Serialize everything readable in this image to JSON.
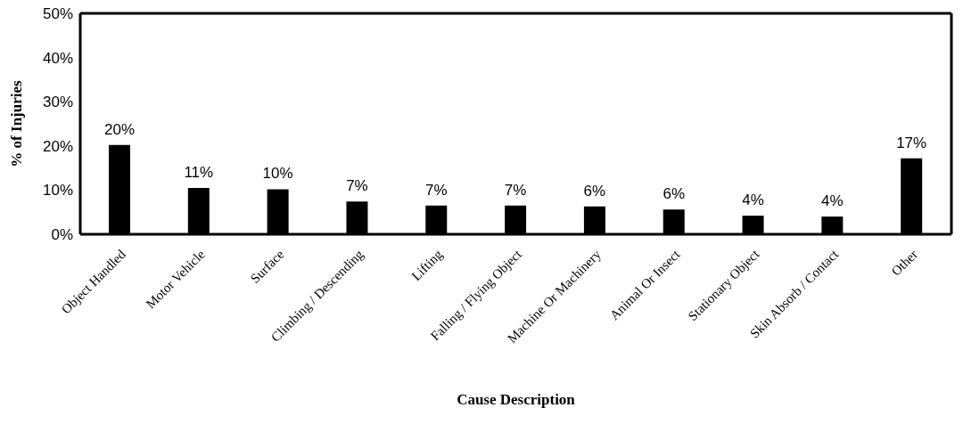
{
  "chart_data": {
    "type": "bar",
    "xlabel": "Cause Description",
    "ylabel": "% of Injuries",
    "categories": [
      "Object Handled",
      "Motor Vehicle",
      "Surface",
      "Climbing / Descending",
      "Lifting",
      "Falling / Flying Object",
      "Machine Or Machinery",
      "Animal Or Insect",
      "Stationary Object",
      "Skin Absorb / Contact",
      "Other"
    ],
    "values": [
      20.2,
      10.5,
      10.2,
      7.4,
      6.5,
      6.5,
      6.3,
      5.6,
      4.2,
      4.0,
      17.2
    ],
    "value_labels": [
      "20%",
      "11%",
      "10%",
      "7%",
      "7%",
      "7%",
      "6%",
      "6%",
      "4%",
      "4%",
      "17%"
    ],
    "color": "#000000",
    "ylim": [
      0,
      50
    ],
    "yticks": [
      {
        "value": 0,
        "label": "0%"
      },
      {
        "value": 10,
        "label": "10%"
      },
      {
        "value": 20,
        "label": "20%"
      },
      {
        "value": 30,
        "label": "30%"
      },
      {
        "value": 40,
        "label": "40%"
      },
      {
        "value": 50,
        "label": "50%"
      }
    ],
    "grid": false
  }
}
